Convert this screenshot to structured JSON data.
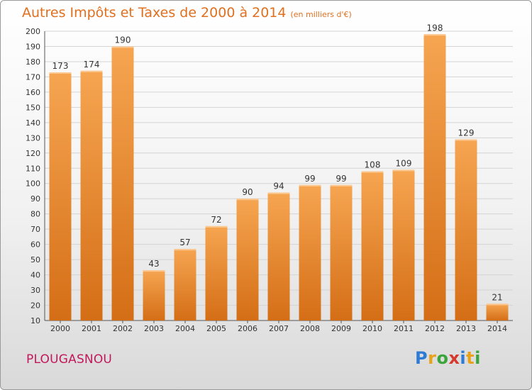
{
  "header": {
    "title": "Autres Impôts et Taxes de 2000 à 2014",
    "unit": "(en milliers d'€)"
  },
  "footer": {
    "city": "PLOUGASNOU",
    "logo_letters": [
      "P",
      "r",
      "o",
      "x",
      "i",
      "t",
      "i"
    ],
    "logo_colors": [
      "#2e7bd6",
      "#e8a21a",
      "#3aa53a",
      "#d63a2e",
      "#2e7bd6",
      "#e8a21a",
      "#3aa53a"
    ]
  },
  "colors": {
    "bar_light": "#f6a551",
    "bar_dark": "#d46e16",
    "title": "#e0701f",
    "city": "#c2185b",
    "grid": "#d4d4d4"
  },
  "chart_data": {
    "type": "bar",
    "categories": [
      "2000",
      "2001",
      "2002",
      "2003",
      "2004",
      "2005",
      "2006",
      "2007",
      "2008",
      "2009",
      "2010",
      "2011",
      "2012",
      "2013",
      "2014"
    ],
    "values": [
      173,
      174,
      190,
      43,
      57,
      72,
      90,
      94,
      99,
      99,
      108,
      109,
      198,
      129,
      21
    ],
    "data_labels": [
      "173",
      "174",
      "190",
      "43",
      "57",
      "72",
      "90",
      "94",
      "99",
      "99",
      "108",
      "109",
      "198",
      "129",
      "21"
    ],
    "yticks": [
      10,
      20,
      30,
      40,
      50,
      60,
      70,
      80,
      90,
      100,
      110,
      120,
      130,
      140,
      150,
      160,
      170,
      180,
      190,
      200
    ],
    "ylim": [
      10,
      200
    ],
    "grid": true,
    "legend": "none"
  }
}
